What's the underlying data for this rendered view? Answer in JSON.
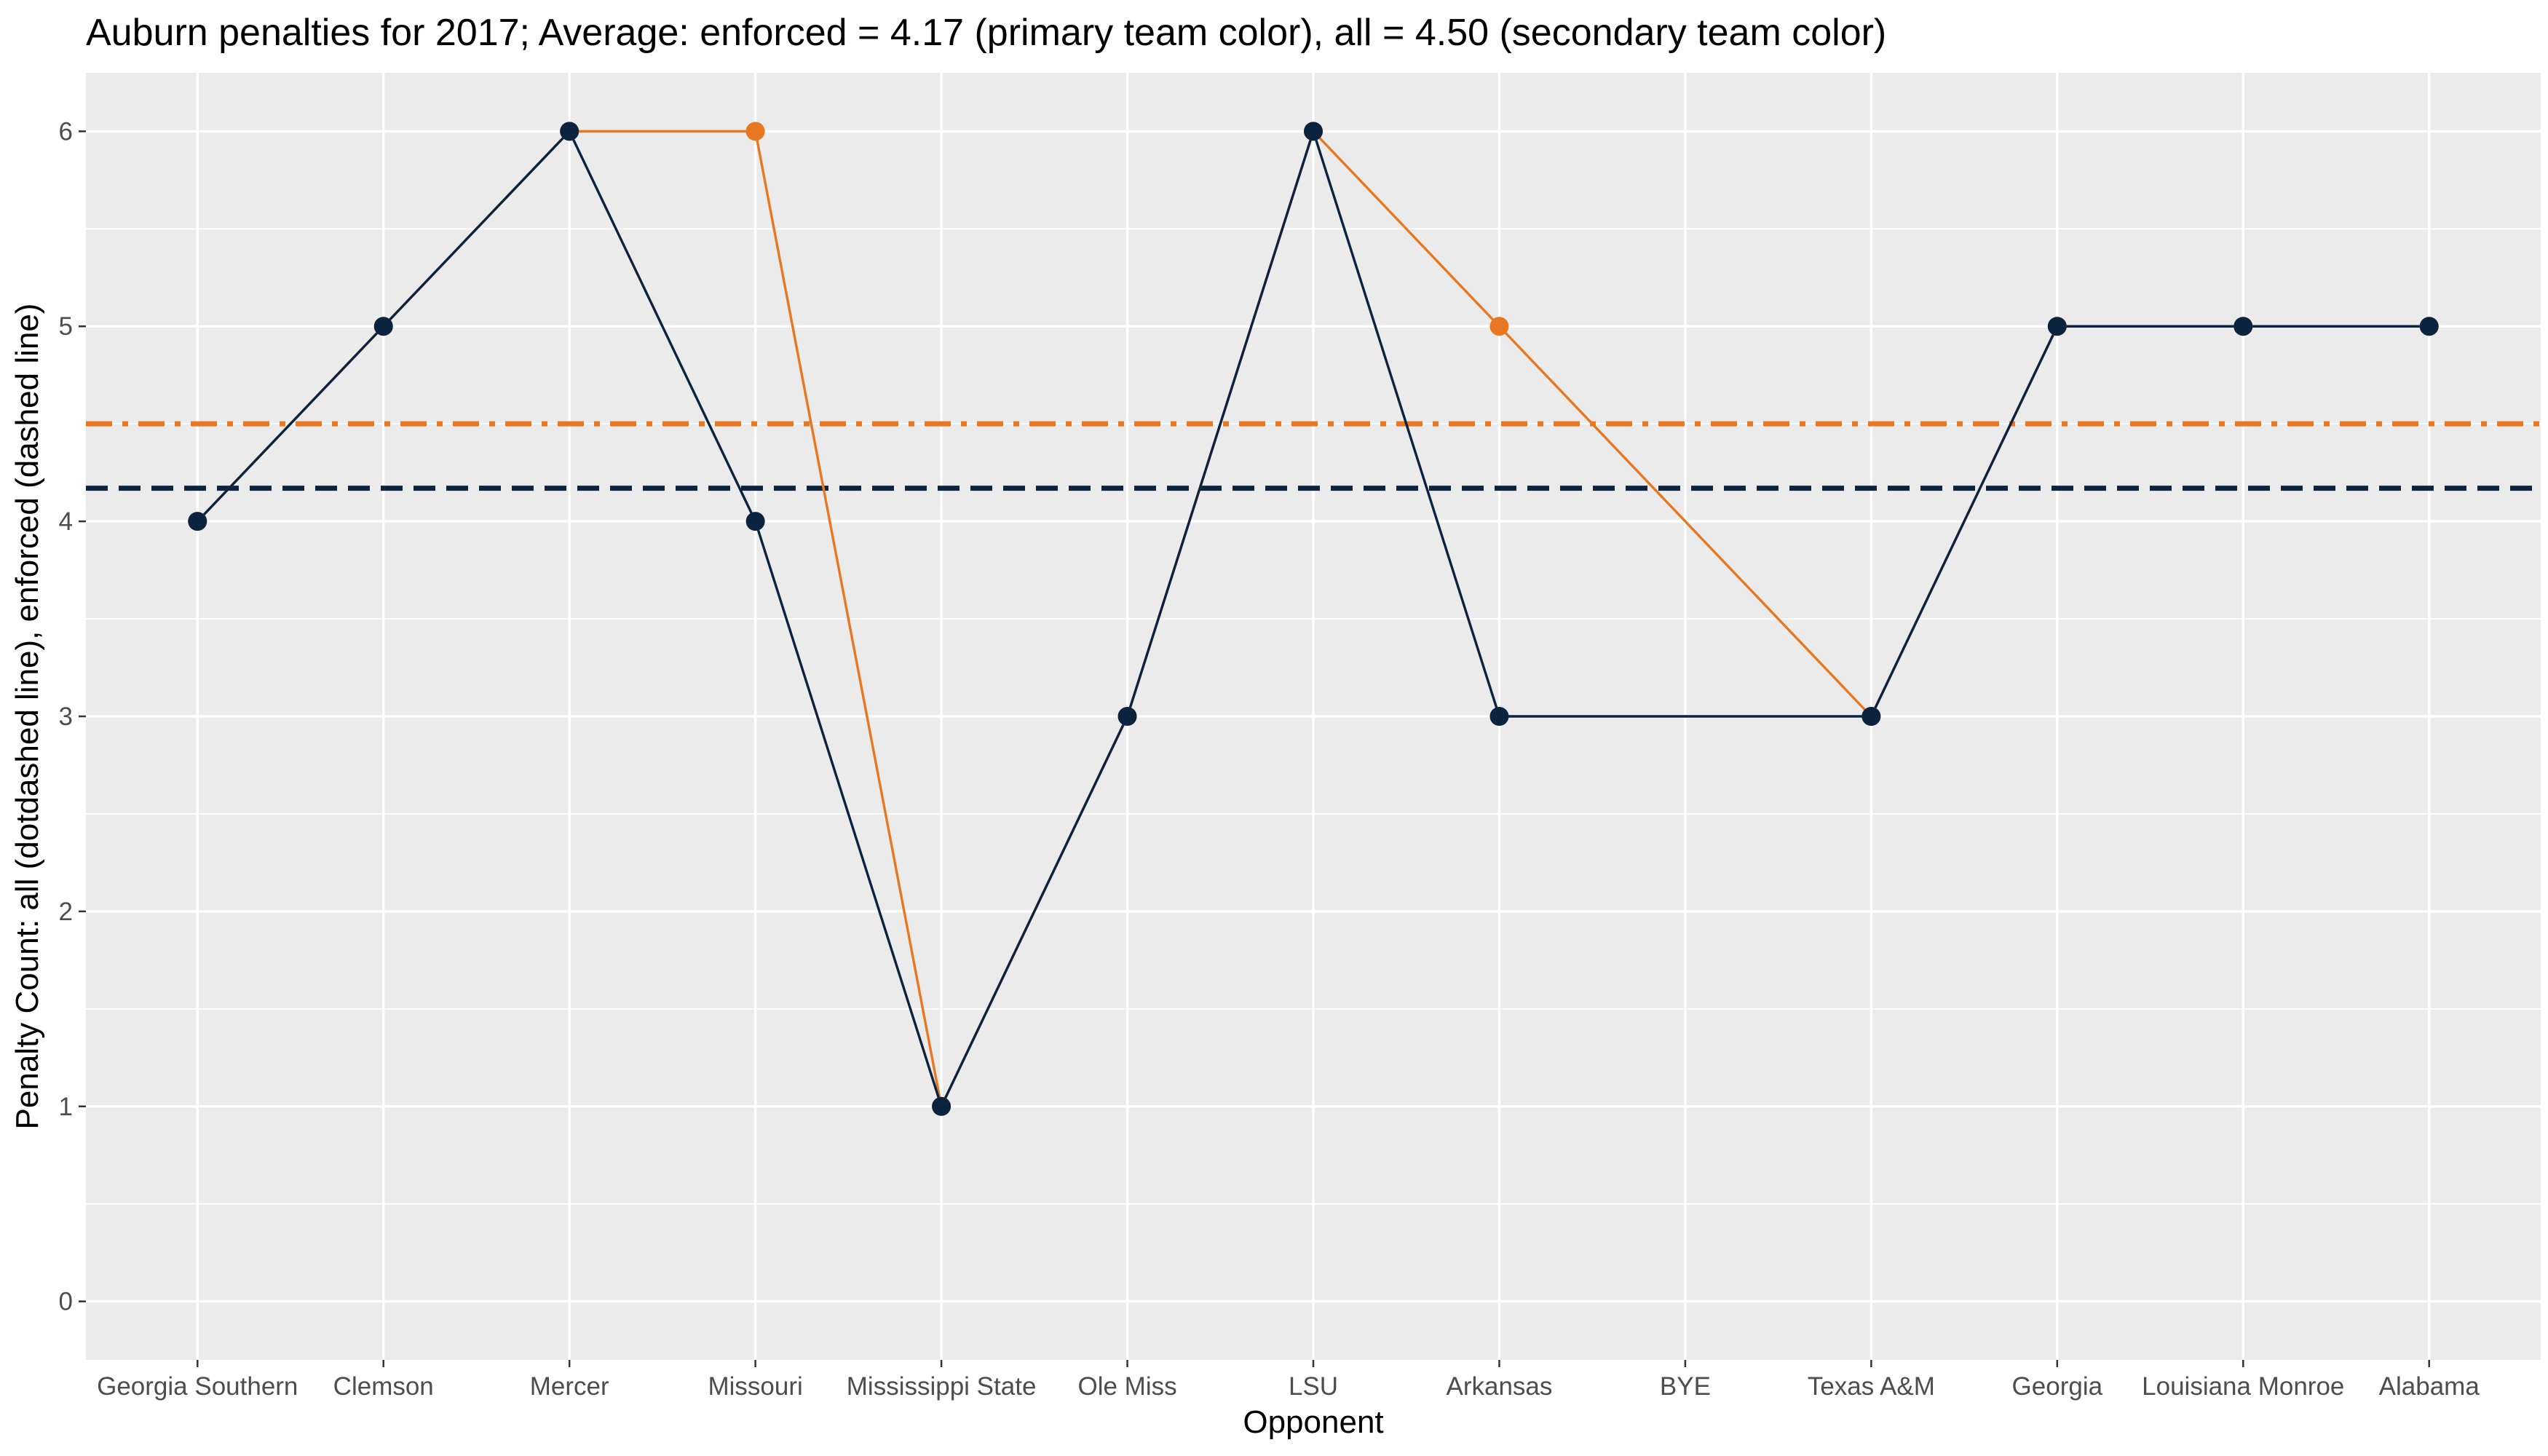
{
  "chart_data": {
    "type": "line",
    "title": "Auburn penalties for 2017; Average: enforced = 4.17 (primary team color), all = 4.50 (secondary team color)",
    "xlabel": "Opponent",
    "ylabel": "Penalty Count: all (dotdashed line), enforced (dashed line)",
    "categories": [
      "Georgia Southern",
      "Clemson",
      "Mercer",
      "Missouri",
      "Mississippi State",
      "Ole Miss",
      "LSU",
      "Arkansas",
      "BYE",
      "Texas A&M",
      "Georgia",
      "Louisiana Monroe",
      "Alabama"
    ],
    "ylim": [
      -0.3,
      6.3
    ],
    "yticks": [
      0,
      1,
      2,
      3,
      4,
      5,
      6
    ],
    "grid": true,
    "series": [
      {
        "values": [
          4,
          5,
          6,
          6,
          1,
          3,
          6,
          5,
          null,
          3,
          5,
          5,
          5
        ],
        "color": "#E87722",
        "style": "solid",
        "average": 4.5,
        "average_style": "dotdash"
      },
      {
        "values": [
          4,
          5,
          6,
          4,
          1,
          3,
          6,
          3,
          null,
          3,
          5,
          5,
          5
        ],
        "color": "#0C2340",
        "style": "solid",
        "average": 4.17,
        "average_style": "dashed"
      }
    ],
    "colors": {
      "panel_background": "#EBEBEB",
      "grid": "#FFFFFF",
      "primary": "#0C2340",
      "secondary": "#E87722"
    }
  }
}
